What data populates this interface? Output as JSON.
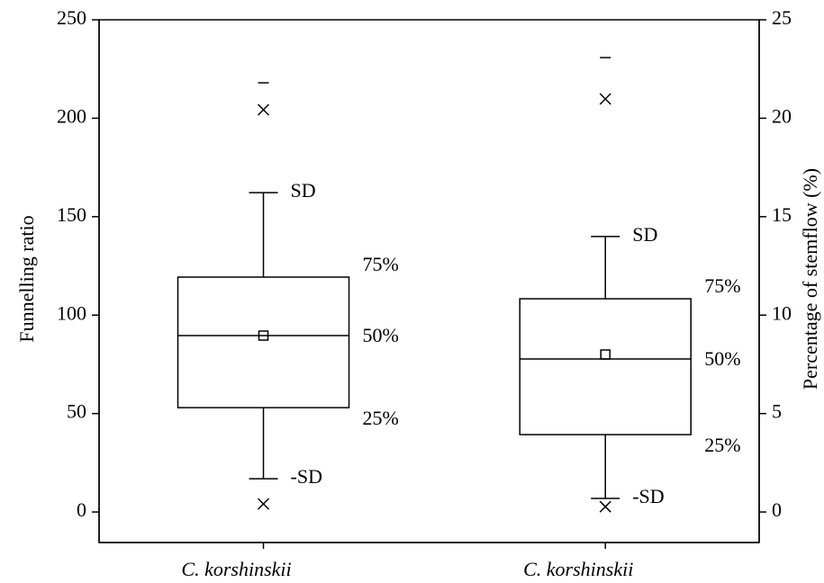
{
  "chart_data": {
    "type": "box",
    "y_label": "Funnelling ratio",
    "y2_label": "Percentage of stemflow (%)",
    "categories": [
      "C. korshinskii",
      "C. korshinskii"
    ],
    "ylim": [
      -15.5,
      250
    ],
    "yticks": [
      0,
      50,
      100,
      150,
      200,
      250
    ],
    "y2lim": [
      -1.55,
      25
    ],
    "y2ticks": [
      0,
      5,
      10,
      15,
      20,
      25
    ],
    "boxes": [
      {
        "axis": "y",
        "q1": 53,
        "median": 89.6,
        "q3": 119.3,
        "whisker_low": 16.9,
        "whisker_high": 162.2,
        "mean": 89.6,
        "p1": 4.1,
        "p99": 204.3,
        "max": 218,
        "labels": {
          "whisker_high": "SD",
          "q3": "75%",
          "median": "50%",
          "q1": "25%",
          "whisker_low": "-SD"
        }
      },
      {
        "axis": "y2",
        "q1": 3.93,
        "median": 7.77,
        "q3": 10.83,
        "whisker_low": 0.69,
        "whisker_high": 13.99,
        "mean": 8.0,
        "p1": 0.27,
        "p99": 20.98,
        "max": 23.08,
        "labels": {
          "whisker_high": "SD",
          "q3": "75%",
          "median": "50%",
          "q1": "25%",
          "whisker_low": "-SD"
        }
      }
    ]
  }
}
